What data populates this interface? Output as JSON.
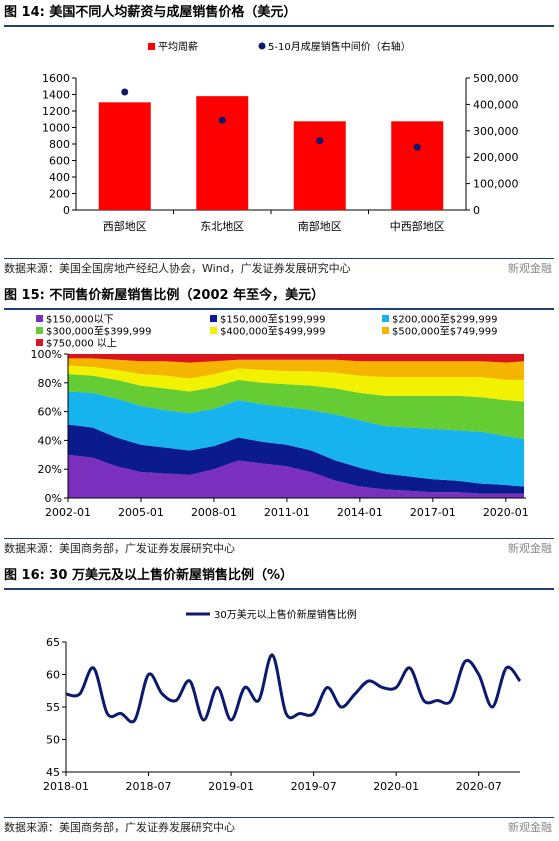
{
  "watermark": "新观金融",
  "chart_data": [
    {
      "figure_label": "图 14:",
      "title": "美国不同人均薪资与成屋销售价格（美元）",
      "type": "bar",
      "categories": [
        "西部地区",
        "东北地区",
        "南部地区",
        "中西部地区"
      ],
      "series": [
        {
          "name": "平均周薪",
          "axis": "left",
          "kind": "bar",
          "color": "#ff0000",
          "values": [
            1305,
            1380,
            1075,
            1075
          ]
        },
        {
          "name": "5-10月成屋销售中间价（右轴）",
          "axis": "right",
          "kind": "scatter",
          "color": "#0a1a6e",
          "values": [
            447000,
            340000,
            262000,
            238000
          ]
        }
      ],
      "y_left": {
        "min": 0,
        "max": 1600,
        "ticks": [
          "0",
          "200",
          "400",
          "600",
          "800",
          "1000",
          "1200",
          "1400",
          "1600"
        ]
      },
      "y_right": {
        "min": 0,
        "max": 500000,
        "ticks": [
          "0",
          "100,000",
          "200,000",
          "300,000",
          "400,000",
          "500,000"
        ]
      },
      "legend_position": "top",
      "source": "数据来源：美国全国房地产经纪人协会，Wind，广发证券发展研究中心"
    },
    {
      "figure_label": "图 15:",
      "title": "不同售价新屋销售比例（2002 年至今，美元）",
      "type": "area",
      "stacked": true,
      "x_ticks": [
        "2002-01",
        "2005-01",
        "2008-01",
        "2011-01",
        "2014-01",
        "2017-01",
        "2020-01"
      ],
      "x_range": [
        2002.0,
        2020.83
      ],
      "y_ticks": [
        "0%",
        "20%",
        "40%",
        "60%",
        "80%",
        "100%"
      ],
      "y_range": [
        0,
        100
      ],
      "legend_position": "top",
      "x": [
        2002,
        2003,
        2004,
        2005,
        2006,
        2007,
        2008,
        2009,
        2010,
        2011,
        2012,
        2013,
        2014,
        2015,
        2016,
        2017,
        2018,
        2019,
        2020,
        2020.75
      ],
      "series": [
        {
          "name": "$150,000以下",
          "color": "#7b2fbe",
          "values": [
            30,
            28,
            22,
            18,
            17,
            16,
            20,
            26,
            24,
            22,
            18,
            12,
            8,
            6,
            5,
            4,
            4,
            3,
            3,
            3
          ]
        },
        {
          "name": "$150,000至$199,999",
          "color": "#0b1a8c",
          "values": [
            21,
            21,
            20,
            19,
            18,
            17,
            16,
            16,
            15,
            15,
            15,
            14,
            13,
            11,
            10,
            9,
            8,
            7,
            6,
            5
          ]
        },
        {
          "name": "$200,000至$299,999",
          "color": "#16b3ef",
          "values": [
            23,
            24,
            27,
            27,
            26,
            26,
            26,
            26,
            26,
            26,
            28,
            32,
            33,
            33,
            34,
            35,
            35,
            36,
            34,
            33
          ]
        },
        {
          "name": "$300,000至$399,999",
          "color": "#66cc33",
          "values": [
            12,
            12,
            13,
            14,
            15,
            15,
            15,
            14,
            15,
            16,
            17,
            18,
            19,
            21,
            22,
            23,
            24,
            24,
            25,
            26
          ]
        },
        {
          "name": "$400,000至$499,999",
          "color": "#f2f200",
          "values": [
            6,
            6,
            7,
            8,
            9,
            9,
            9,
            8,
            9,
            9,
            10,
            11,
            12,
            13,
            13,
            13,
            13,
            14,
            14,
            15
          ]
        },
        {
          "name": "$500,000至$749,999",
          "color": "#f5b400",
          "values": [
            5,
            6,
            7,
            9,
            10,
            11,
            9,
            6,
            7,
            8,
            8,
            9,
            10,
            11,
            11,
            11,
            11,
            11,
            12,
            13
          ]
        },
        {
          "name": "$750,000 以上",
          "color": "#d9141e",
          "values": [
            3,
            3,
            4,
            5,
            5,
            6,
            5,
            4,
            4,
            4,
            4,
            4,
            5,
            5,
            5,
            5,
            5,
            5,
            6,
            5
          ]
        }
      ],
      "source": "数据来源：美国商务部，广发证券发展研究中心"
    },
    {
      "figure_label": "图 16:",
      "title": "30 万美元及以上售价新屋销售比例（%）",
      "type": "line",
      "x_ticks": [
        "2018-01",
        "2018-07",
        "2019-01",
        "2019-07",
        "2020-01",
        "2020-07"
      ],
      "x_range": [
        2018.0,
        2020.75
      ],
      "y_ticks": [
        "45",
        "50",
        "55",
        "60",
        "65"
      ],
      "y_range": [
        45,
        65
      ],
      "legend_position": "top",
      "series": [
        {
          "name": "30万美元以上售价新屋销售比例",
          "color": "#0b1a6e",
          "x": [
            2018.0,
            2018.083,
            2018.167,
            2018.25,
            2018.333,
            2018.417,
            2018.5,
            2018.583,
            2018.667,
            2018.75,
            2018.833,
            2018.917,
            2019.0,
            2019.083,
            2019.167,
            2019.25,
            2019.333,
            2019.417,
            2019.5,
            2019.583,
            2019.667,
            2019.75,
            2019.833,
            2019.917,
            2020.0,
            2020.083,
            2020.167,
            2020.25,
            2020.333,
            2020.417,
            2020.5,
            2020.583,
            2020.667,
            2020.75
          ],
          "values": [
            57,
            57,
            61,
            54,
            54,
            53,
            60,
            57,
            56,
            59,
            53,
            58,
            53,
            58,
            56,
            63,
            54,
            54,
            54,
            58,
            55,
            57,
            59,
            58,
            58,
            61,
            56,
            56,
            56,
            62,
            60,
            55,
            61,
            59
          ]
        }
      ],
      "source": "数据来源：美国商务部，广发证券发展研究中心"
    }
  ]
}
